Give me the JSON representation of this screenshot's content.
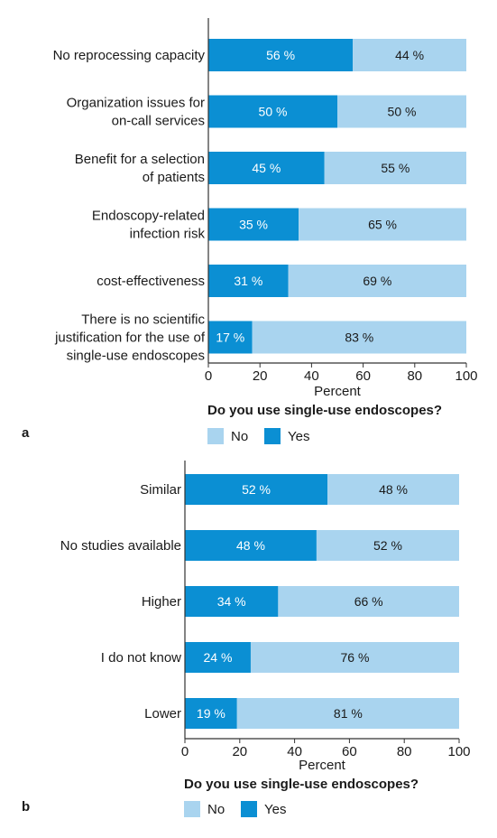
{
  "colors": {
    "yes": "#0b8fd3",
    "no": "#a9d4ef",
    "axis": "#333333"
  },
  "chart_data": [
    {
      "type": "bar",
      "orientation": "horizontal",
      "stacked": true,
      "panel_label": "a",
      "categories": [
        "No reprocessing capacity",
        "Organization issues for on-call services",
        "Benefit for a selection of patients",
        "Endoscopy-related infection risk",
        "cost-effectiveness",
        "There is no scientific justification for the use of single-use endoscopes"
      ],
      "category_lines": [
        [
          "No reprocessing capacity"
        ],
        [
          "Organization issues for",
          "on-call services"
        ],
        [
          "Benefit for a selection",
          "of patients"
        ],
        [
          "Endoscopy-related",
          "infection risk"
        ],
        [
          "cost-effectiveness"
        ],
        [
          "There is no scientific",
          "justification for the use of",
          "single-use endoscopes"
        ]
      ],
      "series": [
        {
          "name": "Yes",
          "values": [
            56,
            50,
            45,
            35,
            31,
            17
          ],
          "labels": [
            "56 %",
            "50 %",
            "45 %",
            "35 %",
            "31 %",
            "17 %"
          ]
        },
        {
          "name": "No",
          "values": [
            44,
            50,
            55,
            65,
            69,
            83
          ],
          "labels": [
            "44 %",
            "50 %",
            "55 %",
            "65 %",
            "69 %",
            "83 %"
          ]
        }
      ],
      "xlabel": "Percent",
      "xlim": [
        0,
        100
      ],
      "xticks": [
        "0",
        "20",
        "40",
        "60",
        "80",
        "100"
      ],
      "legend_title": "Do you use single-use endoscopes?",
      "legend": [
        "No",
        "Yes"
      ]
    },
    {
      "type": "bar",
      "orientation": "horizontal",
      "stacked": true,
      "panel_label": "b",
      "categories": [
        "Similar",
        "No studies available",
        "Higher",
        "I do not know",
        "Lower"
      ],
      "category_lines": [
        [
          "Similar"
        ],
        [
          "No studies available"
        ],
        [
          "Higher"
        ],
        [
          "I do not know"
        ],
        [
          "Lower"
        ]
      ],
      "series": [
        {
          "name": "Yes",
          "values": [
            52,
            48,
            34,
            24,
            19
          ],
          "labels": [
            "52 %",
            "48 %",
            "34 %",
            "24 %",
            "19 %"
          ]
        },
        {
          "name": "No",
          "values": [
            48,
            52,
            66,
            76,
            81
          ],
          "labels": [
            "48 %",
            "52 %",
            "66 %",
            "76 %",
            "81 %"
          ]
        }
      ],
      "xlabel": "Percent",
      "xlim": [
        0,
        100
      ],
      "xticks": [
        "0",
        "20",
        "40",
        "60",
        "80",
        "100"
      ],
      "legend_title": "Do you use single-use endoscopes?",
      "legend": [
        "No",
        "Yes"
      ]
    }
  ]
}
